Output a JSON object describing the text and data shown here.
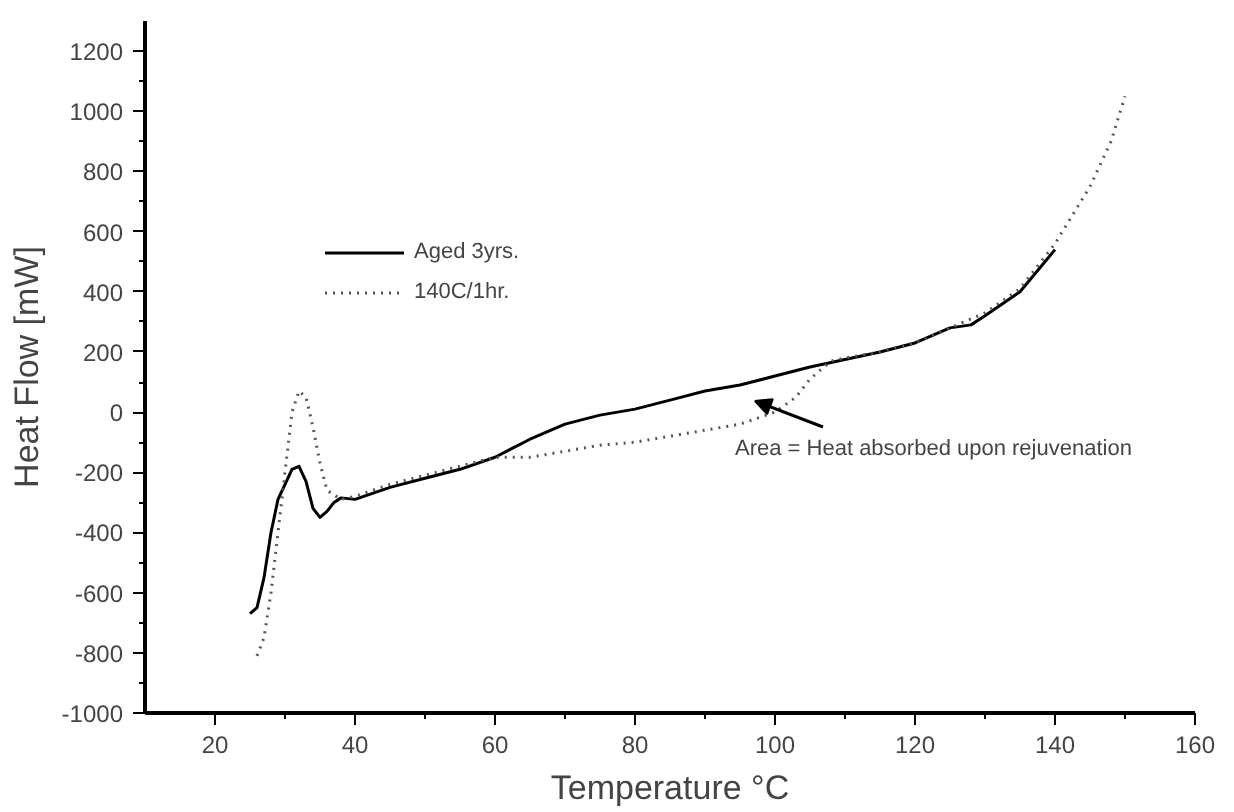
{
  "chart_data": {
    "type": "line",
    "xlabel": "Temperature °C",
    "ylabel": "Heat Flow [mW]",
    "xlim": [
      10,
      160
    ],
    "ylim": [
      -1000,
      1300
    ],
    "xticks": [
      20,
      40,
      60,
      80,
      100,
      120,
      140,
      160
    ],
    "yticks": [
      -1000,
      -800,
      -600,
      -400,
      -200,
      0,
      200,
      400,
      600,
      800,
      1000,
      1200
    ],
    "grid": false,
    "legend": "left",
    "marker": "none",
    "annotations": [
      "Area = Heat absorbed upon rejuvenation"
    ],
    "series": [
      {
        "name": "Aged 3yrs.",
        "color": "#000000",
        "line_style": "solid",
        "x": [
          25,
          26,
          27,
          28,
          29,
          30,
          31,
          32,
          33,
          34,
          35,
          36,
          37,
          38,
          40,
          45,
          50,
          55,
          60,
          65,
          70,
          75,
          80,
          85,
          90,
          95,
          100,
          105,
          110,
          115,
          120,
          125,
          128,
          130,
          135,
          140
        ],
        "values": [
          -670,
          -650,
          -550,
          -400,
          -290,
          -240,
          -190,
          -180,
          -230,
          -320,
          -350,
          -330,
          -300,
          -285,
          -290,
          -250,
          -220,
          -190,
          -150,
          -90,
          -40,
          -10,
          10,
          40,
          70,
          90,
          120,
          150,
          175,
          200,
          230,
          280,
          290,
          320,
          400,
          540
        ]
      },
      {
        "name": "140C/1hr.",
        "color": "#555555",
        "line_style": "dotted",
        "x": [
          26,
          27,
          28,
          29,
          30,
          31,
          32,
          33,
          34,
          35,
          36,
          38,
          40,
          45,
          50,
          55,
          60,
          65,
          70,
          75,
          80,
          85,
          90,
          95,
          100,
          103,
          105,
          108,
          110,
          115,
          120,
          125,
          130,
          135,
          140,
          145,
          148,
          150
        ],
        "values": [
          -810,
          -750,
          -600,
          -400,
          -200,
          0,
          70,
          50,
          -50,
          -170,
          -260,
          -290,
          -280,
          -240,
          -210,
          -180,
          -150,
          -150,
          -130,
          -110,
          -100,
          -80,
          -60,
          -40,
          0,
          50,
          110,
          170,
          180,
          200,
          230,
          280,
          330,
          410,
          560,
          750,
          900,
          1050
        ]
      }
    ]
  }
}
